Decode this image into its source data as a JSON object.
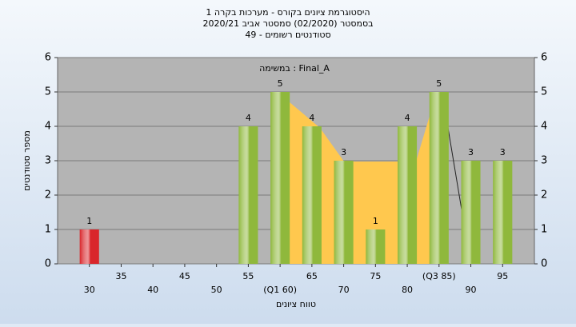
{
  "chart_data": {
    "type": "bar",
    "title": "היסטוגרמת ציונים בקורס - מערכות בקרה 1",
    "subtitle": "בסמסטר  (02/2020)  סמסטר אביב 2020/21",
    "subtitle2": "סטודנטים רשומים - 49",
    "annotation": "במשימה : Final_A",
    "y_label": "מספר סטודנטים",
    "x_label": "טווח ציונים",
    "categories": [
      "30",
      "35",
      "40",
      "45",
      "50",
      "55",
      "(Q1 60)",
      "65",
      "70",
      "75",
      "80",
      "(Q3 85)",
      "90",
      "95"
    ],
    "values": [
      1,
      0,
      0,
      0,
      0,
      4,
      5,
      4,
      3,
      1,
      4,
      5,
      3,
      3
    ],
    "colors": [
      "#d9262b",
      "#8fb83c",
      "#8fb83c",
      "#8fb83c",
      "#8fb83c",
      "#8fb83c",
      "#8fb83c",
      "#8fb83c",
      "#8fb83c",
      "#8fb83c",
      "#8fb83c",
      "#8fb83c",
      "#8fb83c",
      "#8fb83c"
    ],
    "ylim": [
      0,
      6
    ],
    "yticks": [
      0,
      1,
      2,
      3,
      4,
      5,
      6
    ],
    "grid": true
  }
}
